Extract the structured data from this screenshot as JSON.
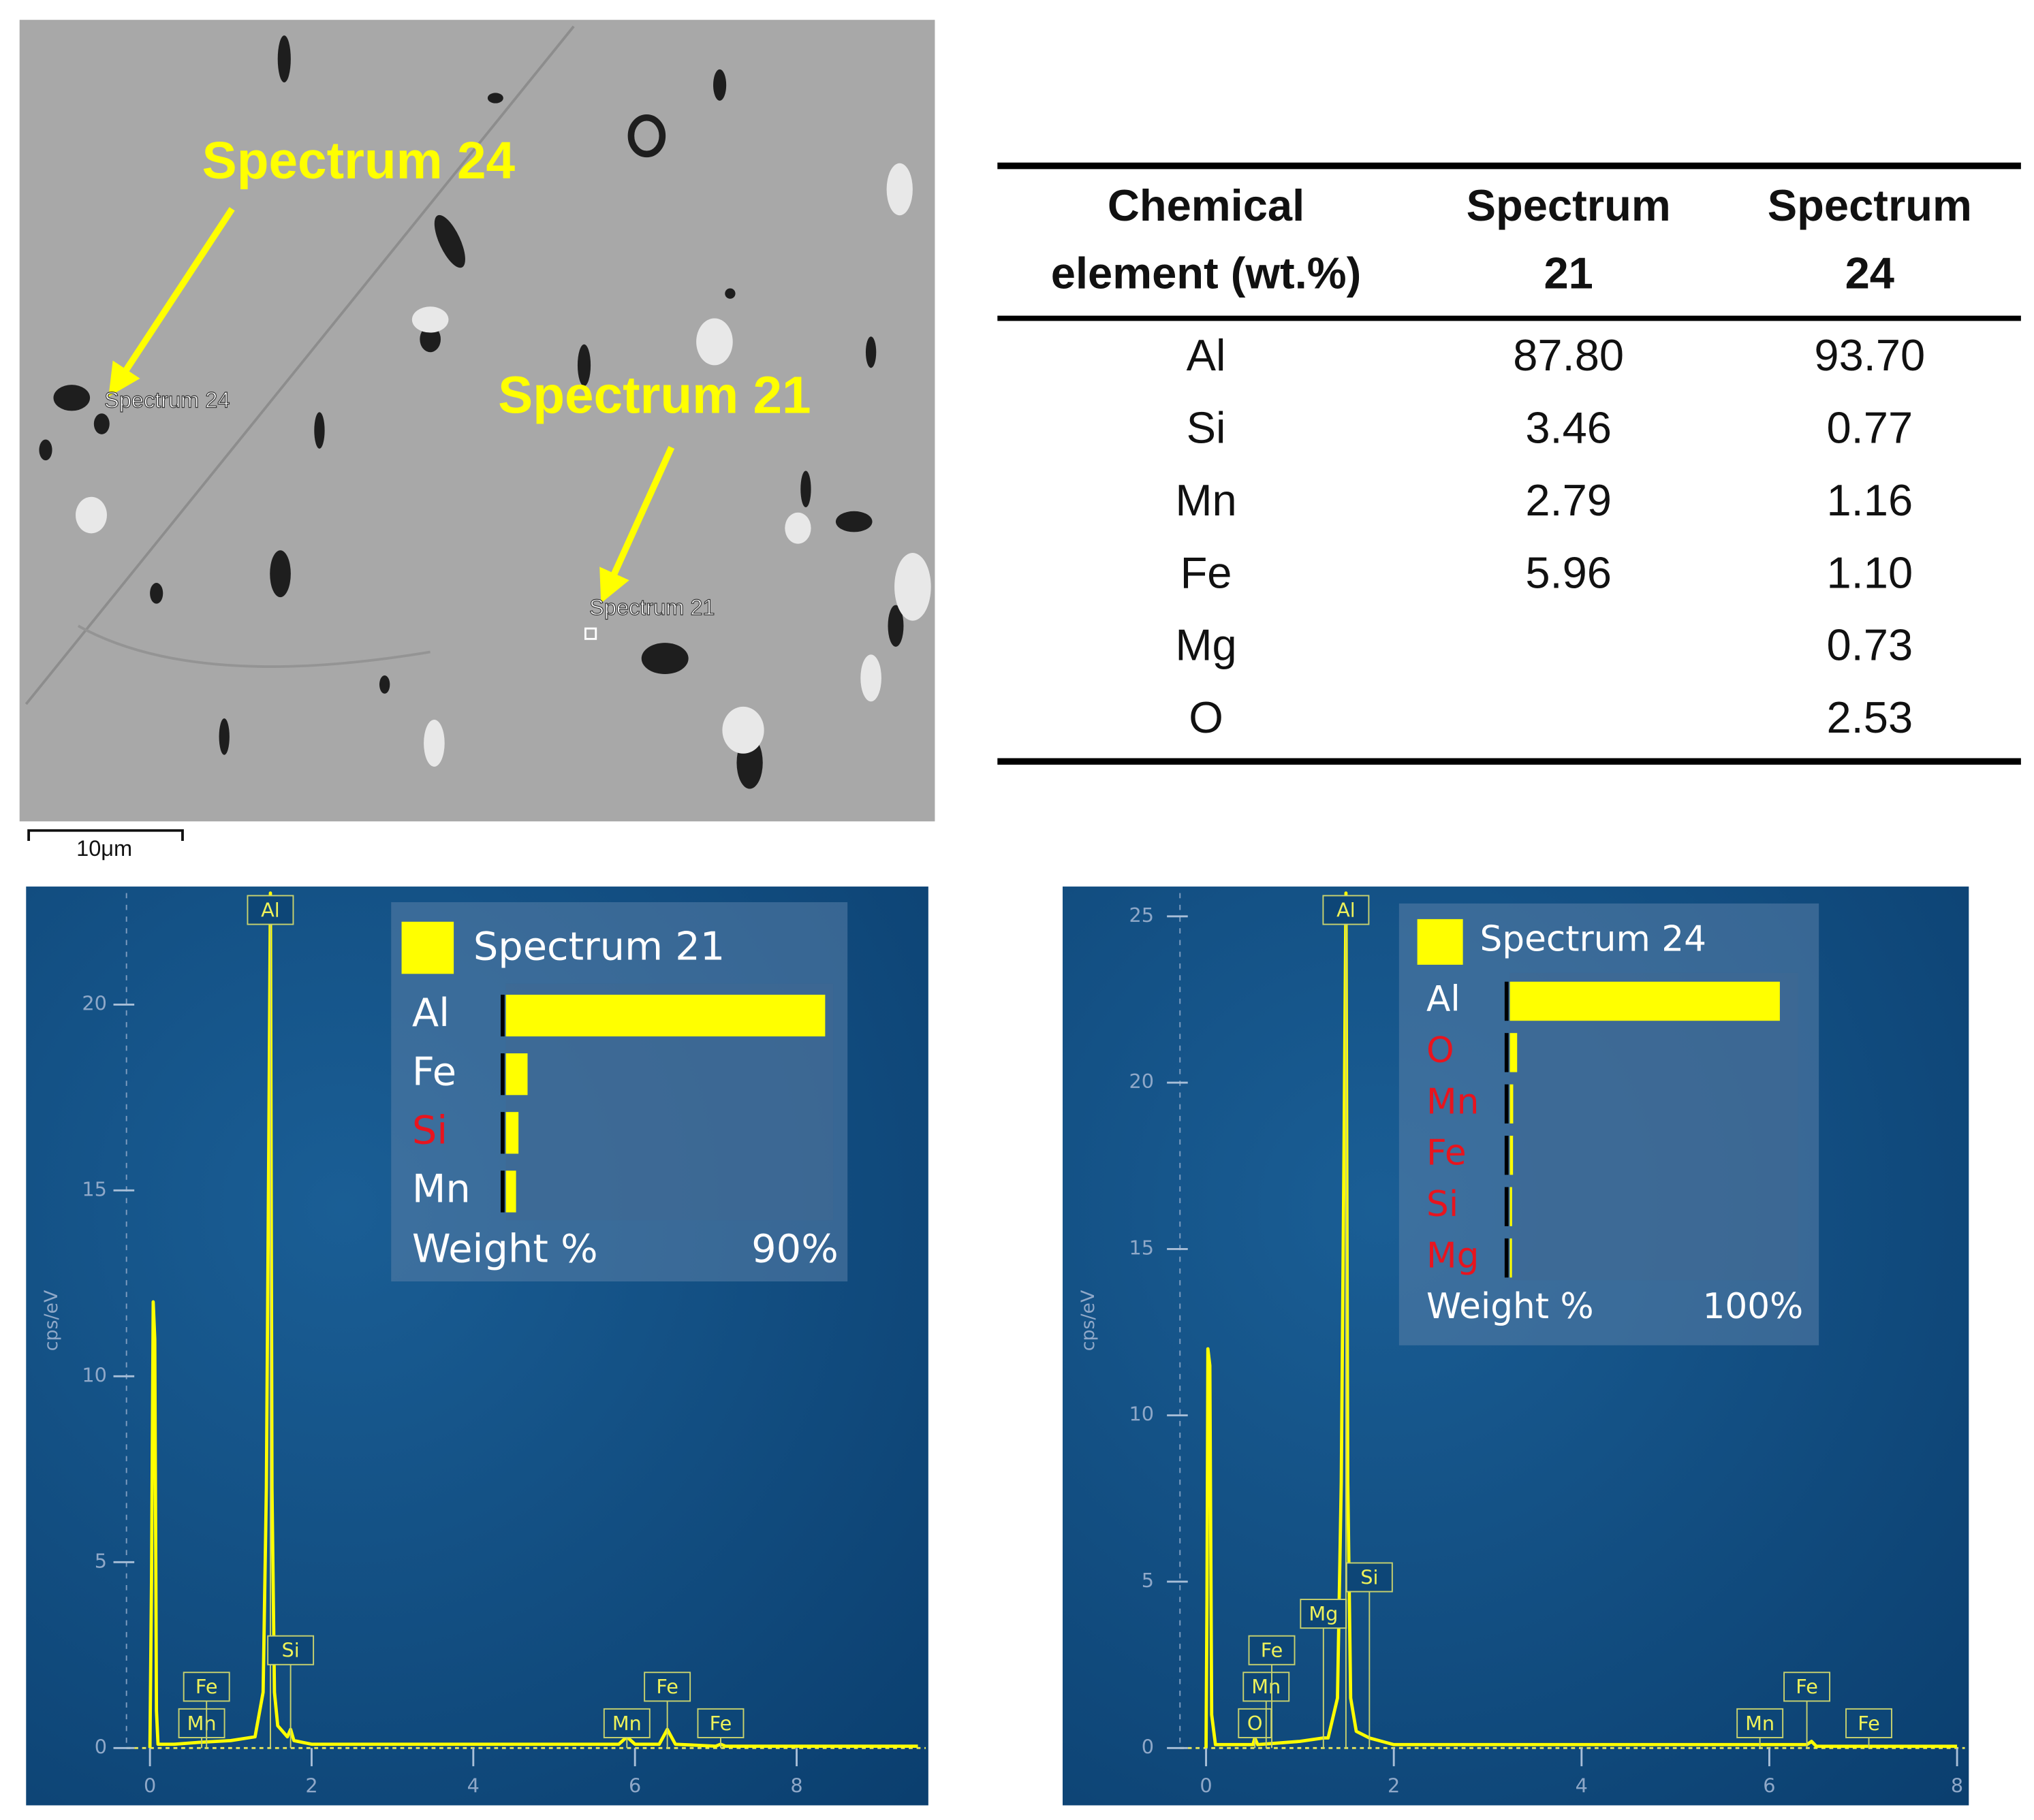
{
  "sem": {
    "callouts": [
      {
        "label": "Spectrum 24",
        "marker": "Spectrum 24"
      },
      {
        "label": "Spectrum 21",
        "marker": "Spectrum 21"
      }
    ],
    "scale_bar": "10μm"
  },
  "table": {
    "header": [
      [
        "Chemical",
        "element (wt.%)"
      ],
      [
        "Spectrum",
        "21"
      ],
      [
        "Spectrum",
        "24"
      ]
    ],
    "rows": [
      [
        "Al",
        "87.80",
        "93.70"
      ],
      [
        "Si",
        "3.46",
        "0.77"
      ],
      [
        "Mn",
        "2.79",
        "1.16"
      ],
      [
        "Fe",
        "5.96",
        "1.10"
      ],
      [
        "Mg",
        null,
        "0.73"
      ],
      [
        "O",
        null,
        "2.53"
      ]
    ]
  },
  "chart_data": [
    {
      "type": "line",
      "ylabel": "cps/eV",
      "x": [
        0,
        0.02,
        0.04,
        0.06,
        0.08,
        0.1,
        0.3,
        0.6,
        1.0,
        1.3,
        1.4,
        1.44,
        1.47,
        1.49,
        1.51,
        1.54,
        1.58,
        1.7,
        1.74,
        1.78,
        2.0,
        5.8,
        5.9,
        6.0,
        6.3,
        6.4,
        6.5,
        7.0,
        7.06,
        7.12,
        9.5
      ],
      "series": [
        {
          "name": "Spectrum 21",
          "color": "#ffff00",
          "values": [
            0,
            4.5,
            12,
            11,
            1,
            0.1,
            0.1,
            0.15,
            0.2,
            0.3,
            1.5,
            7,
            16,
            23,
            7,
            1.5,
            0.6,
            0.3,
            0.5,
            0.2,
            0.1,
            0.1,
            0.3,
            0.1,
            0.1,
            0.5,
            0.1,
            0.05,
            0.1,
            0.05,
            0.05
          ]
        }
      ],
      "xlim": [
        0,
        9.5
      ],
      "xticks": [
        0,
        2,
        4,
        6,
        8
      ],
      "ylim": [
        0,
        23
      ],
      "yticks": [
        0,
        5,
        10,
        15,
        20
      ],
      "peak_labels": [
        {
          "label": "Mn",
          "x": 0.64
        },
        {
          "label": "Fe",
          "x": 0.7
        },
        {
          "label": "Al",
          "x": 1.49
        },
        {
          "label": "Si",
          "x": 1.74
        },
        {
          "label": "Mn",
          "x": 5.9
        },
        {
          "label": "Fe",
          "x": 6.4
        },
        {
          "label": "Fe",
          "x": 7.06
        }
      ],
      "inset": {
        "type": "bar",
        "categories": [
          "Al",
          "Fe",
          "Si",
          "Mn"
        ],
        "values": [
          87.8,
          5.96,
          3.46,
          2.79
        ],
        "category_colors": [
          "#ffffff",
          "#ffffff",
          "#e8141e",
          "#ffffff"
        ],
        "color": "#ffff00",
        "xlabel": "Weight %",
        "xlim": [
          0,
          90
        ],
        "xticks": [
          {
            "value": 90,
            "label": "90%"
          }
        ]
      }
    },
    {
      "type": "line",
      "ylabel": "cps/eV",
      "x": [
        0,
        0.01,
        0.02,
        0.04,
        0.06,
        0.1,
        0.5,
        0.52,
        0.55,
        1.0,
        1.25,
        1.3,
        1.4,
        1.44,
        1.47,
        1.49,
        1.51,
        1.54,
        1.6,
        1.74,
        2.0,
        6.4,
        6.45,
        6.5,
        8
      ],
      "series": [
        {
          "name": "Spectrum 24",
          "color": "#ffff00",
          "values": [
            0,
            4.5,
            12,
            11.5,
            1,
            0.1,
            0.1,
            0.3,
            0.1,
            0.2,
            0.3,
            0.3,
            1.5,
            8,
            18,
            25.7,
            8,
            1.5,
            0.5,
            0.3,
            0.1,
            0.1,
            0.2,
            0.05,
            0.05
          ]
        }
      ],
      "xlim": [
        0,
        8
      ],
      "xticks": [
        0,
        2,
        4,
        6,
        8
      ],
      "ylim": [
        0,
        25.7
      ],
      "yticks": [
        0,
        5,
        10,
        15,
        20,
        25
      ],
      "peak_labels": [
        {
          "label": "O",
          "x": 0.52
        },
        {
          "label": "Mn",
          "x": 0.64
        },
        {
          "label": "Fe",
          "x": 0.7
        },
        {
          "label": "Mg",
          "x": 1.25
        },
        {
          "label": "Al",
          "x": 1.49
        },
        {
          "label": "Si",
          "x": 1.74
        },
        {
          "label": "Mn",
          "x": 5.9
        },
        {
          "label": "Fe",
          "x": 6.4
        },
        {
          "label": "Fe",
          "x": 7.06
        }
      ],
      "inset": {
        "type": "bar",
        "categories": [
          "Al",
          "O",
          "Mn",
          "Fe",
          "Si",
          "Mg"
        ],
        "values": [
          93.7,
          2.53,
          1.16,
          1.1,
          0.77,
          0.73
        ],
        "category_colors": [
          "#ffffff",
          "#e8141e",
          "#e8141e",
          "#e8141e",
          "#e8141e",
          "#e8141e"
        ],
        "color": "#ffff00",
        "xlabel": "Weight %",
        "xlim": [
          0,
          100
        ],
        "xticks": [
          {
            "value": 100,
            "label": "100%"
          }
        ]
      }
    }
  ]
}
